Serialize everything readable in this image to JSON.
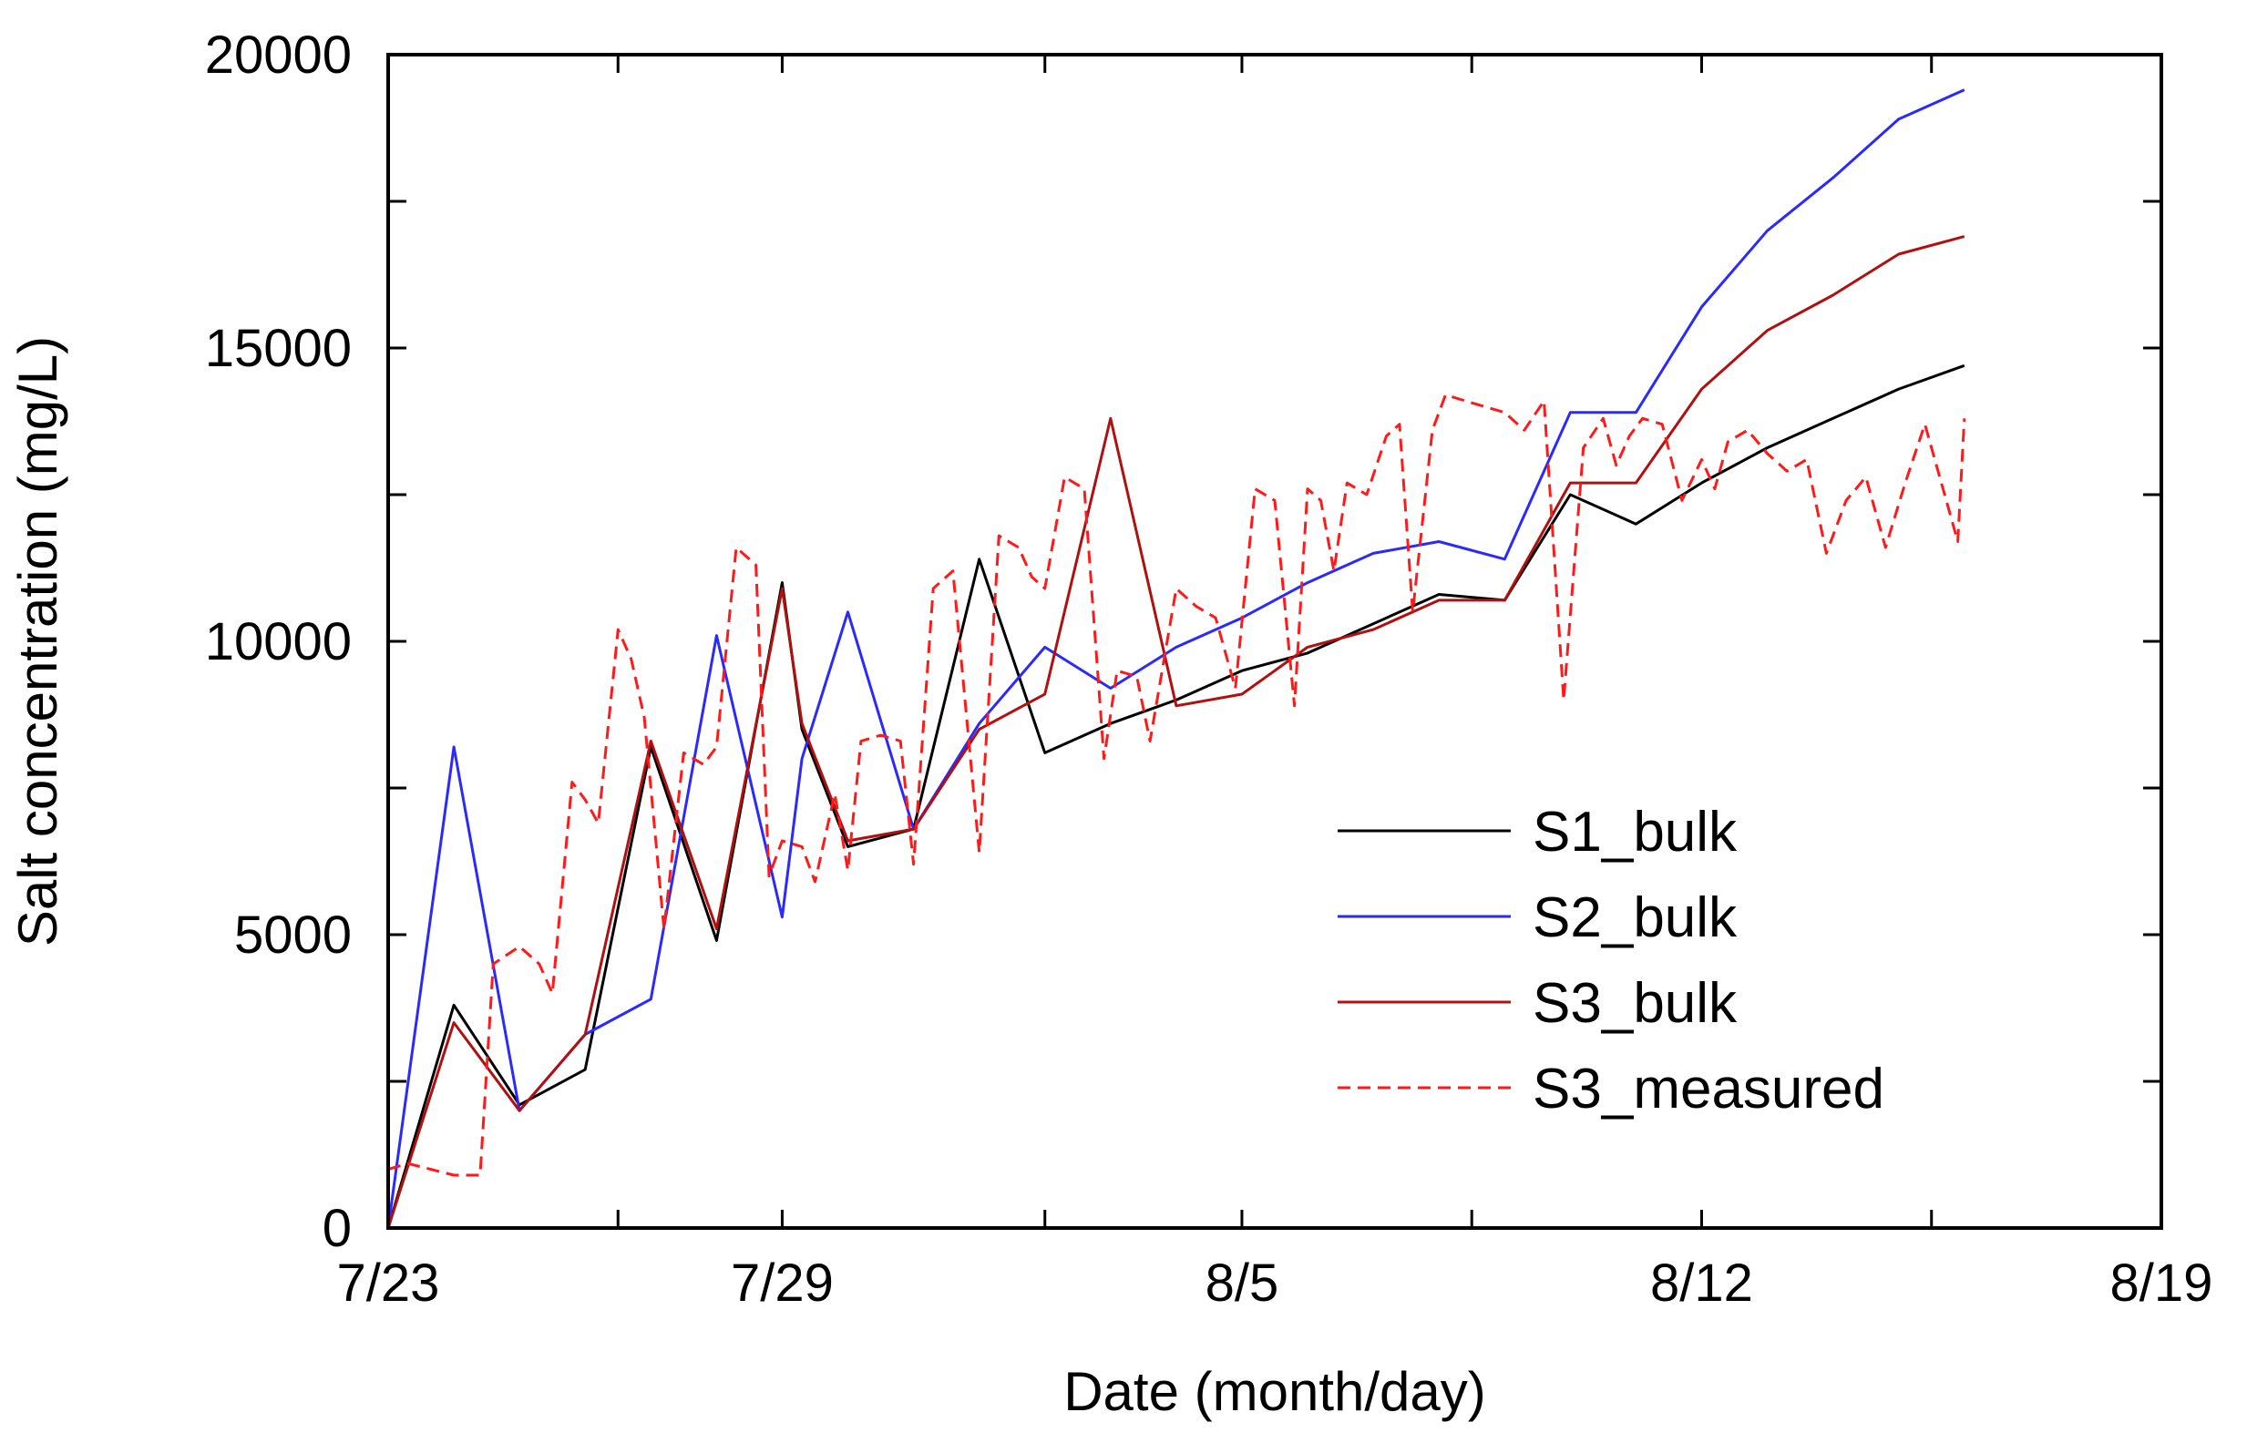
{
  "chart_data": {
    "type": "line",
    "title": "",
    "xlabel": "Date (month/day)",
    "ylabel": "Salt concentration (mg/L)",
    "x_unit": "days since 7/23",
    "xlim": [
      0,
      27
    ],
    "ylim": [
      0,
      20000
    ],
    "x_ticks": [
      {
        "value": 0,
        "label": "7/23"
      },
      {
        "value": 6,
        "label": "7/29"
      },
      {
        "value": 13,
        "label": "8/5"
      },
      {
        "value": 20,
        "label": "8/12"
      },
      {
        "value": 27,
        "label": "8/19"
      }
    ],
    "x_minor_ticks": [
      3.5,
      10,
      16.5,
      23.5
    ],
    "y_ticks": [
      {
        "value": 0,
        "label": "0"
      },
      {
        "value": 5000,
        "label": "5000"
      },
      {
        "value": 10000,
        "label": "10000"
      },
      {
        "value": 15000,
        "label": "15000"
      },
      {
        "value": 20000,
        "label": "20000"
      }
    ],
    "y_minor_ticks": [
      2500,
      7500,
      12500,
      17500
    ],
    "legend_position": "lower-right",
    "series": [
      {
        "name": "S1_bulk",
        "color": "#000000",
        "dash": "solid",
        "x": [
          0,
          1,
          2,
          3,
          4,
          5,
          6,
          6.3,
          7,
          8,
          9,
          10,
          11,
          12,
          13,
          14,
          15,
          16,
          17,
          18,
          19,
          20,
          21,
          22,
          23,
          24
        ],
        "y": [
          0,
          3800,
          2100,
          2700,
          8200,
          4900,
          11000,
          8500,
          6500,
          6800,
          11400,
          8100,
          8600,
          9000,
          9500,
          9800,
          10300,
          10800,
          10700,
          12500,
          12000,
          12700,
          13300,
          13800,
          14300,
          14700
        ]
      },
      {
        "name": "S2_bulk",
        "color": "#2a2aff",
        "dash": "solid",
        "x": [
          0,
          1,
          2,
          3,
          4,
          5,
          6,
          6.3,
          7,
          8,
          9,
          10,
          11,
          12,
          13,
          14,
          15,
          16,
          17,
          18,
          19,
          20,
          21,
          22,
          23,
          24
        ],
        "y": [
          0,
          8200,
          2000,
          3300,
          3900,
          10100,
          5300,
          8000,
          10500,
          6800,
          8600,
          9900,
          9200,
          9900,
          10400,
          11000,
          11500,
          11700,
          11400,
          13900,
          13900,
          15700,
          17000,
          17900,
          18900,
          19400
        ]
      },
      {
        "name": "S3_bulk",
        "color": "#b01010",
        "dash": "solid",
        "x": [
          0,
          1,
          2,
          3,
          4,
          5,
          6,
          6.3,
          7,
          8,
          9,
          10,
          11,
          12,
          13,
          14,
          15,
          16,
          17,
          18,
          19,
          20,
          21,
          22,
          23,
          24
        ],
        "y": [
          0,
          3500,
          2000,
          3300,
          8300,
          5100,
          10900,
          8600,
          6600,
          6800,
          8500,
          9100,
          13800,
          8900,
          9100,
          9900,
          10200,
          10700,
          10700,
          12700,
          12700,
          14300,
          15300,
          15900,
          16600,
          16900
        ]
      },
      {
        "name": "S3_measured",
        "color": "#ff1a1a",
        "dash": "dashed",
        "x": [
          0,
          0.3,
          1,
          1.4,
          1.6,
          2,
          2.3,
          2.5,
          2.8,
          3,
          3.2,
          3.5,
          3.7,
          3.9,
          4.2,
          4.5,
          4.8,
          5,
          5.3,
          5.6,
          5.8,
          6,
          6.3,
          6.5,
          6.8,
          7,
          7.2,
          7.5,
          7.8,
          8,
          8.3,
          8.6,
          9,
          9.3,
          9.6,
          9.8,
          10,
          10.3,
          10.6,
          10.9,
          11.1,
          11.4,
          11.6,
          12,
          12.3,
          12.6,
          12.9,
          13.2,
          13.5,
          13.8,
          14,
          14.2,
          14.4,
          14.6,
          14.9,
          15.2,
          15.4,
          15.6,
          15.9,
          16.1,
          16.4,
          16.7,
          17,
          17.3,
          17.6,
          17.9,
          18.2,
          18.5,
          18.7,
          18.9,
          19.1,
          19.4,
          19.7,
          20,
          20.2,
          20.4,
          20.7,
          21,
          21.3,
          21.6,
          21.9,
          22.2,
          22.5,
          22.8,
          23.1,
          23.4,
          23.7,
          23.9,
          24
        ],
        "y": [
          1000,
          1100,
          900,
          900,
          4500,
          4800,
          4500,
          4000,
          7600,
          7300,
          6900,
          10200,
          9700,
          8700,
          5100,
          8100,
          7900,
          8200,
          11600,
          11300,
          6000,
          6600,
          6500,
          5900,
          7400,
          6100,
          8300,
          8400,
          8300,
          6200,
          10900,
          11200,
          6400,
          11800,
          11600,
          11100,
          10900,
          12800,
          12600,
          8000,
          9500,
          9400,
          8300,
          10900,
          10600,
          10400,
          9200,
          12600,
          12400,
          8900,
          12600,
          12400,
          11200,
          12700,
          12500,
          13500,
          13700,
          10500,
          13600,
          14200,
          14100,
          14000,
          13900,
          13600,
          14100,
          9000,
          13300,
          13800,
          13000,
          13500,
          13800,
          13700,
          12400,
          13100,
          12600,
          13400,
          13600,
          13200,
          12900,
          13100,
          11500,
          12400,
          12800,
          11600,
          12700,
          13700,
          12500,
          11700,
          13800
        ]
      }
    ]
  }
}
